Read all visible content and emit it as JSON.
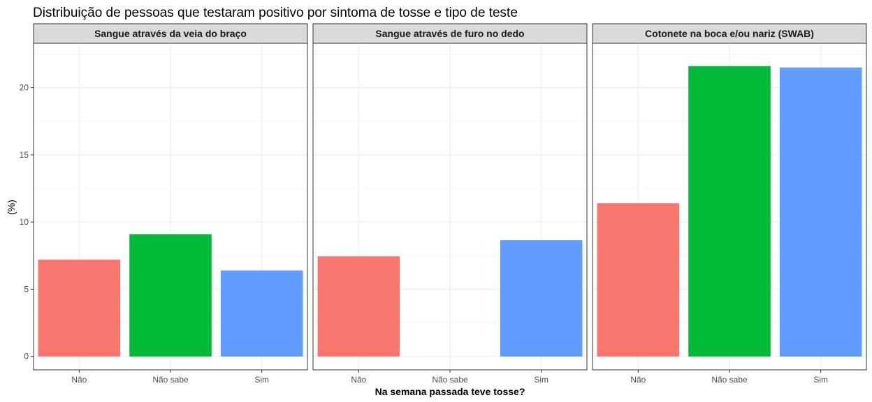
{
  "chart_data": {
    "type": "bar",
    "title": "Distribuição de pessoas que testaram positivo por sintoma de tosse e tipo de teste",
    "xlabel": "Na semana passada teve tosse?",
    "ylabel": "(%)",
    "categories": [
      "Não",
      "Não sabe",
      "Sim"
    ],
    "ylim": [
      -1,
      23.3
    ],
    "yticks": [
      0,
      5,
      10,
      15,
      20
    ],
    "grid": true,
    "legend": "none",
    "colors": [
      "#F8766D",
      "#00BA38",
      "#619CFF"
    ],
    "panels": [
      {
        "name": "Sangue através da veia do braço",
        "values": [
          7.2,
          9.1,
          6.4
        ]
      },
      {
        "name": "Sangue através de furo no dedo",
        "values": [
          7.45,
          0,
          8.65
        ]
      },
      {
        "name": "Cotonete na boca e/ou nariz (SWAB)",
        "values": [
          11.4,
          21.6,
          21.5
        ]
      }
    ]
  }
}
